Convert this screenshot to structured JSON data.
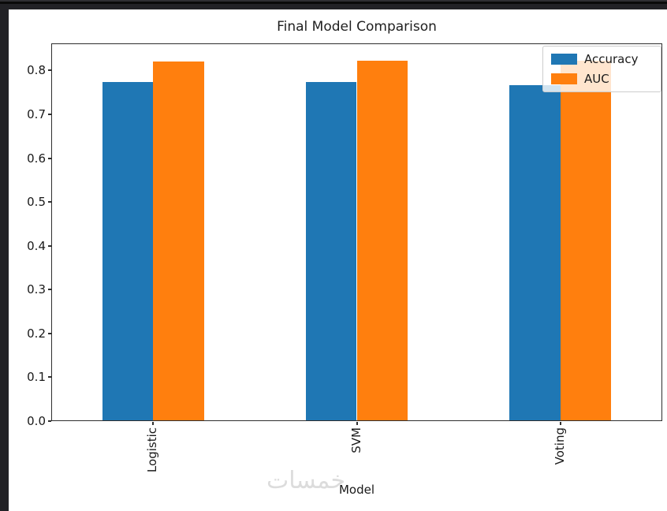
{
  "app_border": {
    "color": "#222226"
  },
  "figure": {
    "background": "#ffffff",
    "spine_color": "#2e2e2e"
  },
  "watermark": {
    "text": "خمسات",
    "color": "#dcdcdc"
  },
  "chart_data": {
    "type": "bar",
    "title": "Final Model Comparison",
    "xlabel": "Model",
    "ylabel": "",
    "categories": [
      "Logistic",
      "SVM",
      "Voting"
    ],
    "series": [
      {
        "name": "Accuracy",
        "color": "#1f77b4",
        "values": [
          0.773,
          0.773,
          0.767
        ]
      },
      {
        "name": "AUC",
        "color": "#ff7f0e",
        "values": [
          0.82,
          0.823,
          0.822
        ]
      }
    ],
    "ylim": [
      0,
      0.862
    ],
    "yticks": [
      0.0,
      0.1,
      0.2,
      0.3,
      0.4,
      0.5,
      0.6,
      0.7,
      0.8
    ],
    "ytick_labels": [
      "0.0",
      "0.1",
      "0.2",
      "0.3",
      "0.4",
      "0.5",
      "0.6",
      "0.7",
      "0.8"
    ],
    "xtick_rotation": 90,
    "bar_group_width_fraction": 0.5,
    "grid": false,
    "legend": {
      "position": "upper right",
      "labels": [
        "Accuracy",
        "AUC"
      ]
    }
  }
}
